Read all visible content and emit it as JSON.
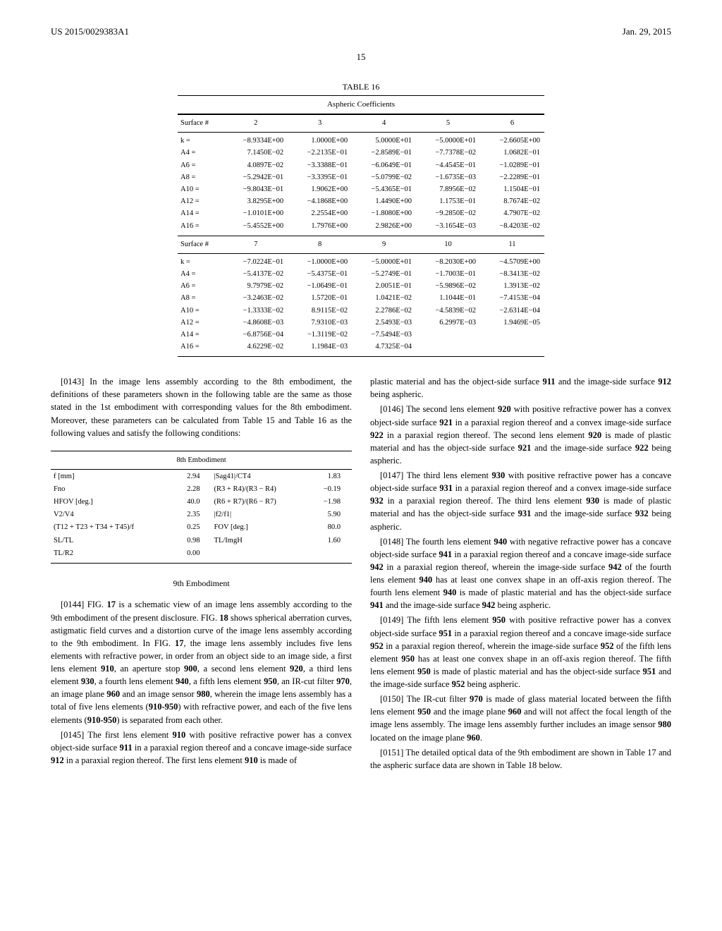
{
  "header": {
    "doc_id": "US 2015/0029383A1",
    "date": "Jan. 29, 2015",
    "page_number": "15"
  },
  "table16": {
    "caption": "TABLE 16",
    "subcaption": "Aspheric Coefficients",
    "header_label": "Surface #",
    "groups": [
      {
        "columns": [
          "2",
          "3",
          "4",
          "5",
          "6"
        ],
        "rows": [
          {
            "label": "k =",
            "vals": [
              "−8.9334E+00",
              "1.0000E+00",
              "5.0000E+01",
              "−5.0000E+01",
              "−2.6605E+00"
            ]
          },
          {
            "label": "A4 =",
            "vals": [
              "7.1450E−02",
              "−2.2135E−01",
              "−2.8589E−01",
              "−7.7378E−02",
              "1.0682E−01"
            ]
          },
          {
            "label": "A6 =",
            "vals": [
              "4.0897E−02",
              "−3.3388E−01",
              "−6.0649E−01",
              "−4.4545E−01",
              "−1.0289E−01"
            ]
          },
          {
            "label": "A8 =",
            "vals": [
              "−5.2942E−01",
              "−3.3395E−01",
              "−5.0799E−02",
              "−1.6735E−03",
              "−2.2289E−01"
            ]
          },
          {
            "label": "A10 =",
            "vals": [
              "−9.8043E−01",
              "1.9062E+00",
              "−5.4365E−01",
              "7.8956E−02",
              "1.1504E−01"
            ]
          },
          {
            "label": "A12 =",
            "vals": [
              "3.8295E+00",
              "−4.1868E+00",
              "1.4490E+00",
              "1.1753E−01",
              "8.7674E−02"
            ]
          },
          {
            "label": "A14 =",
            "vals": [
              "−1.0101E+00",
              "2.2554E+00",
              "−1.8080E+00",
              "−9.2850E−02",
              "4.7907E−02"
            ]
          },
          {
            "label": "A16 =",
            "vals": [
              "−5.4552E+00",
              "1.7976E+00",
              "2.9826E+00",
              "−3.1654E−03",
              "−8.4203E−02"
            ]
          }
        ]
      },
      {
        "columns": [
          "7",
          "8",
          "9",
          "10",
          "11"
        ],
        "rows": [
          {
            "label": "k =",
            "vals": [
              "−7.0224E−01",
              "−1.0000E+00",
              "−5.0000E+01",
              "−8.2030E+00",
              "−4.5709E+00"
            ]
          },
          {
            "label": "A4 =",
            "vals": [
              "−5.4137E−02",
              "−5.4375E−01",
              "−5.2749E−01",
              "−1.7003E−01",
              "−8.3413E−02"
            ]
          },
          {
            "label": "A6 =",
            "vals": [
              "9.7979E−02",
              "−1.0649E−01",
              "2.0051E−01",
              "−5.9896E−02",
              "1.3913E−02"
            ]
          },
          {
            "label": "A8 =",
            "vals": [
              "−3.2463E−02",
              "1.5720E−01",
              "1.0421E−02",
              "1.1044E−01",
              "−7.4153E−04"
            ]
          },
          {
            "label": "A10 =",
            "vals": [
              "−1.3333E−02",
              "8.9115E−02",
              "2.2786E−02",
              "−4.5839E−02",
              "−2.6314E−04"
            ]
          },
          {
            "label": "A12 =",
            "vals": [
              "−4.8608E−03",
              "7.9310E−03",
              "2.5493E−03",
              "6.2997E−03",
              "1.9469E−05"
            ]
          },
          {
            "label": "A14 =",
            "vals": [
              "−6.8756E−04",
              "−1.3119E−02",
              "−7.5494E−03",
              "",
              ""
            ]
          },
          {
            "label": "A16 =",
            "vals": [
              "4.6229E−02",
              "1.1984E−03",
              "4.7325E−04",
              "",
              ""
            ]
          }
        ]
      }
    ]
  },
  "col_left": {
    "p0143": "[0143]   In the image lens assembly according to the 8th embodiment, the definitions of these parameters shown in the following table are the same as those stated in the 1st embodiment with corresponding values for the 8th embodiment. Moreover, these parameters can be calculated from Table 15 and Table 16 as the following values and satisfy the following conditions:",
    "emb_table": {
      "caption": "8th Embodiment",
      "rows": [
        {
          "l1": "f [mm]",
          "v1": "2.94",
          "l2": "|Sag41|/CT4",
          "v2": "1.83"
        },
        {
          "l1": "Fno",
          "v1": "2.28",
          "l2": "(R3 + R4)/(R3 − R4)",
          "v2": "−0.19"
        },
        {
          "l1": "HFOV [deg.]",
          "v1": "40.0",
          "l2": "(R6 + R7)/(R6 − R7)",
          "v2": "−1.98"
        },
        {
          "l1": "V2/V4",
          "v1": "2.35",
          "l2": "|f2/f1|",
          "v2": "5.90"
        },
        {
          "l1": "(T12 + T23 + T34 + T45)/f",
          "v1": "0.25",
          "l2": "FOV [deg.]",
          "v2": "80.0"
        },
        {
          "l1": "SL/TL",
          "v1": "0.98",
          "l2": "TL/ImgH",
          "v2": "1.60"
        },
        {
          "l1": "TL/R2",
          "v1": "0.00",
          "l2": "",
          "v2": ""
        }
      ]
    },
    "heading9": "9th Embodiment",
    "p0144_a": "[0144]   FIG. ",
    "p0144_fig17": "17",
    "p0144_b": " is a schematic view of an image lens assembly according to the 9th embodiment of the present disclosure. FIG. ",
    "p0144_fig18": "18",
    "p0144_c": " shows spherical aberration curves, astigmatic field curves and a distortion curve of the image lens assembly according to the 9th embodiment. In FIG. ",
    "p0144_fig17b": "17",
    "p0144_d": ", the image lens assembly includes five lens elements with refractive power, in order from an object side to an image side, a first lens element ",
    "r910": "910",
    "p0144_e": ", an aperture stop ",
    "r900": "900",
    "p0144_f": ", a second lens element ",
    "r920": "920",
    "p0144_g": ", a third lens element ",
    "r930": "930",
    "p0144_h": ", a fourth lens element ",
    "r940": "940",
    "p0144_i": ", a fifth lens element ",
    "r950": "950",
    "p0144_j": ", an IR-cut filter ",
    "r970": "970",
    "p0144_k": ", an image plane ",
    "r960": "960",
    "p0144_l": " and an image sensor ",
    "r980": "980",
    "p0144_m": ", wherein the image lens assembly has a total of five lens elements (",
    "r910_950": "910-950",
    "p0144_n": ") with refractive power, and each of the five lens elements (",
    "p0144_o": ") is separated from each other.",
    "p0145_a": "[0145]   The first lens element ",
    "p0145_b": " with positive refractive power has a convex object-side surface ",
    "r911": "911",
    "p0145_c": " in a paraxial region thereof and a concave image-side surface ",
    "r912": "912",
    "p0145_d": " in a paraxial region thereof. The first lens element ",
    "p0145_e": " is made of"
  },
  "col_right": {
    "p0145_cont": "plastic material and has the object-side surface ",
    "r911": "911",
    "p0145_cont_b": " and the image-side surface ",
    "r912": "912",
    "p0145_cont_c": " being aspheric.",
    "p0146_a": "[0146]   The second lens element ",
    "r920": "920",
    "p0146_b": " with positive refractive power has a convex object-side surface ",
    "r921": "921",
    "p0146_c": " in a paraxial region thereof and a convex image-side surface ",
    "r922": "922",
    "p0146_d": " in a paraxial region thereof. The second lens element ",
    "p0146_e": " is made of plastic material and has the object-side surface ",
    "p0146_f": " and the image-side surface ",
    "p0146_g": " being aspheric.",
    "p0147_a": "[0147]   The third lens element ",
    "r930": "930",
    "p0147_b": " with positive refractive power has a concave object-side surface ",
    "r931": "931",
    "p0147_c": " in a paraxial region thereof and a convex image-side surface ",
    "r932": "932",
    "p0147_d": " in a paraxial region thereof. The third lens element ",
    "p0147_e": " is made of plastic material and has the object-side surface ",
    "p0147_f": " and the image-side surface ",
    "p0147_g": " being aspheric.",
    "p0148_a": "[0148]   The fourth lens element ",
    "r940": "940",
    "p0148_b": " with negative refractive power has a concave object-side surface ",
    "r941": "941",
    "p0148_c": " in a paraxial region thereof and a concave image-side surface ",
    "r942": "942",
    "p0148_d": " in a paraxial region thereof, wherein the image-side surface ",
    "p0148_e": " of the fourth lens element ",
    "p0148_f": " has at least one convex shape in an off-axis region thereof. The fourth lens element ",
    "p0148_g": " is made of plastic material and has the object-side surface ",
    "p0148_h": " and the image-side surface ",
    "p0148_i": " being aspheric.",
    "p0149_a": "[0149]   The fifth lens element ",
    "r950": "950",
    "p0149_b": " with positive refractive power has a convex object-side surface ",
    "r951": "951",
    "p0149_c": " in a paraxial region thereof and a concave image-side surface ",
    "r952": "952",
    "p0149_d": " in a paraxial region thereof, wherein the image-side surface ",
    "p0149_e": " of the fifth lens element ",
    "p0149_f": " has at least one convex shape in an off-axis region thereof. The fifth lens element ",
    "p0149_g": " is made of plastic material and has the object-side surface ",
    "p0149_h": " and the image-side surface ",
    "p0149_i": " being aspheric.",
    "p0150_a": "[0150]   The IR-cut filter ",
    "r970": "970",
    "p0150_b": " is made of glass material located between the fifth lens element ",
    "p0150_c": " and the image plane ",
    "r960": "960",
    "p0150_d": " and will not affect the focal length of the image lens assembly. The image lens assembly further includes an image sensor ",
    "r980": "980",
    "p0150_e": " located on the image plane ",
    "p0150_f": ".",
    "p0151": "[0151]   The detailed optical data of the 9th embodiment are shown in Table 17 and the aspheric surface data are shown in Table 18 below."
  }
}
